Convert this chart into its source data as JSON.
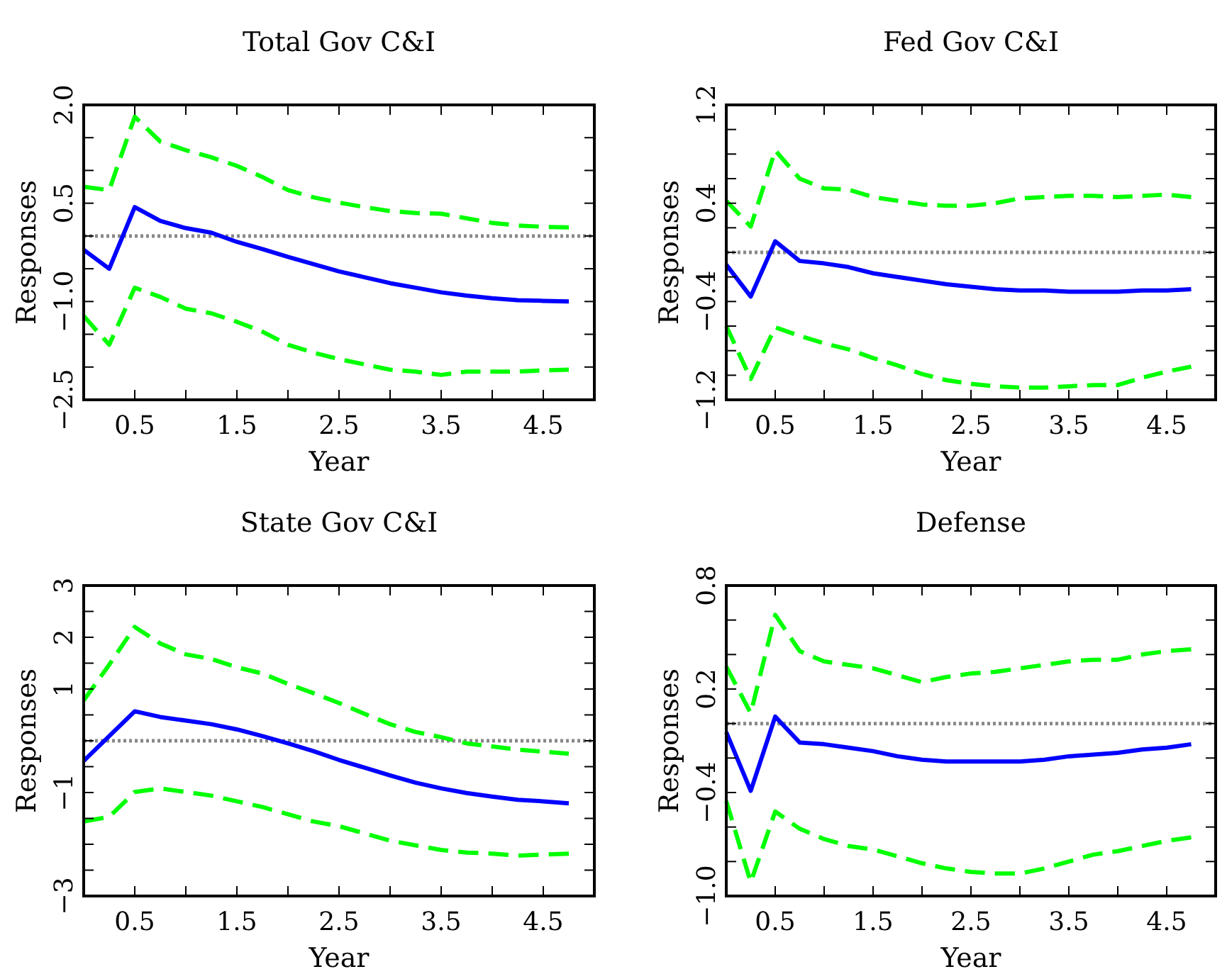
{
  "chart_data": [
    {
      "type": "line",
      "title": "Total Gov C&I",
      "xlabel": "Year",
      "ylabel": "Responses",
      "x": [
        0,
        0.25,
        0.5,
        0.75,
        1,
        1.25,
        1.5,
        1.75,
        2,
        2.25,
        2.5,
        2.75,
        3,
        3.25,
        3.5,
        3.75,
        4,
        4.25,
        4.5,
        4.75
      ],
      "xlim": [
        0,
        5
      ],
      "ylim": [
        -2.5,
        2.0
      ],
      "xticks": [
        {
          "value": 0,
          "label": null
        },
        {
          "value": 0.5,
          "label": "0.5"
        },
        {
          "value": 1,
          "label": null
        },
        {
          "value": 1.5,
          "label": "1.5"
        },
        {
          "value": 2,
          "label": null
        },
        {
          "value": 2.5,
          "label": "2.5"
        },
        {
          "value": 3,
          "label": null
        },
        {
          "value": 3.5,
          "label": "3.5"
        },
        {
          "value": 4,
          "label": null
        },
        {
          "value": 4.5,
          "label": "4.5"
        },
        {
          "value": 5,
          "label": null
        }
      ],
      "yticks": [
        {
          "value": -2.5,
          "label": "−2.5"
        },
        {
          "value": -2,
          "label": null
        },
        {
          "value": -1.5,
          "label": null
        },
        {
          "value": -1,
          "label": "−1.0"
        },
        {
          "value": -0.5,
          "label": null
        },
        {
          "value": 0,
          "label": null
        },
        {
          "value": 0.5,
          "label": "0.5"
        },
        {
          "value": 1,
          "label": null
        },
        {
          "value": 1.5,
          "label": null
        },
        {
          "value": 2,
          "label": "2.0"
        }
      ],
      "ref_lines": [
        {
          "axis": "y",
          "value": 0,
          "color": "#888888",
          "line_style": "dotted"
        }
      ],
      "series": [
        {
          "color": "#00ff00",
          "line_style": "dashed",
          "values": [
            0.75,
            0.7,
            1.82,
            1.44,
            1.31,
            1.2,
            1.07,
            0.9,
            0.7,
            0.59,
            0.51,
            0.44,
            0.38,
            0.35,
            0.34,
            0.27,
            0.2,
            0.16,
            0.14,
            0.13
          ]
        },
        {
          "color": "#0000ff",
          "line_style": "solid",
          "values": [
            -0.21,
            -0.5,
            0.44,
            0.23,
            0.12,
            0.05,
            -0.09,
            -0.2,
            -0.32,
            -0.43,
            -0.54,
            -0.63,
            -0.72,
            -0.79,
            -0.86,
            -0.91,
            -0.95,
            -0.98,
            -0.99,
            -1.0
          ]
        },
        {
          "color": "#00ff00",
          "line_style": "dashed",
          "values": [
            -1.22,
            -1.66,
            -0.79,
            -0.93,
            -1.11,
            -1.18,
            -1.31,
            -1.46,
            -1.66,
            -1.78,
            -1.88,
            -1.96,
            -2.04,
            -2.07,
            -2.12,
            -2.07,
            -2.07,
            -2.07,
            -2.05,
            -2.04
          ]
        }
      ]
    },
    {
      "type": "line",
      "title": "Fed Gov C&I",
      "xlabel": "Year",
      "ylabel": "Responses",
      "x": [
        0,
        0.25,
        0.5,
        0.75,
        1,
        1.25,
        1.5,
        1.75,
        2,
        2.25,
        2.5,
        2.75,
        3,
        3.25,
        3.5,
        3.75,
        4,
        4.25,
        4.5,
        4.75
      ],
      "xlim": [
        0,
        5
      ],
      "ylim": [
        -1.2,
        1.2
      ],
      "xticks": [
        {
          "value": 0,
          "label": null
        },
        {
          "value": 0.5,
          "label": "0.5"
        },
        {
          "value": 1,
          "label": null
        },
        {
          "value": 1.5,
          "label": "1.5"
        },
        {
          "value": 2,
          "label": null
        },
        {
          "value": 2.5,
          "label": "2.5"
        },
        {
          "value": 3,
          "label": null
        },
        {
          "value": 3.5,
          "label": "3.5"
        },
        {
          "value": 4,
          "label": null
        },
        {
          "value": 4.5,
          "label": "4.5"
        },
        {
          "value": 5,
          "label": null
        }
      ],
      "yticks": [
        {
          "value": -1.2,
          "label": "−1.2"
        },
        {
          "value": -1.0,
          "label": null
        },
        {
          "value": -0.8,
          "label": null
        },
        {
          "value": -0.6,
          "label": null
        },
        {
          "value": -0.4,
          "label": "−0.4"
        },
        {
          "value": -0.2,
          "label": null
        },
        {
          "value": 0,
          "label": null
        },
        {
          "value": 0.2,
          "label": null
        },
        {
          "value": 0.4,
          "label": "0.4"
        },
        {
          "value": 0.6,
          "label": null
        },
        {
          "value": 0.8,
          "label": null
        },
        {
          "value": 1.0,
          "label": null
        },
        {
          "value": 1.2,
          "label": "1.2"
        }
      ],
      "ref_lines": [
        {
          "axis": "y",
          "value": 0,
          "color": "#888888",
          "line_style": "dotted"
        }
      ],
      "series": [
        {
          "color": "#00ff00",
          "line_style": "dashed",
          "values": [
            0.42,
            0.21,
            0.83,
            0.6,
            0.52,
            0.51,
            0.45,
            0.42,
            0.39,
            0.38,
            0.38,
            0.4,
            0.44,
            0.45,
            0.46,
            0.46,
            0.45,
            0.46,
            0.47,
            0.45
          ]
        },
        {
          "color": "#0000ff",
          "line_style": "solid",
          "values": [
            -0.1,
            -0.36,
            0.09,
            -0.07,
            -0.09,
            -0.12,
            -0.17,
            -0.2,
            -0.23,
            -0.26,
            -0.28,
            -0.3,
            -0.31,
            -0.31,
            -0.32,
            -0.32,
            -0.32,
            -0.31,
            -0.31,
            -0.3
          ]
        },
        {
          "color": "#00ff00",
          "line_style": "dashed",
          "values": [
            -0.6,
            -1.03,
            -0.61,
            -0.68,
            -0.74,
            -0.79,
            -0.86,
            -0.92,
            -0.99,
            -1.04,
            -1.07,
            -1.09,
            -1.1,
            -1.1,
            -1.09,
            -1.08,
            -1.08,
            -1.02,
            -0.97,
            -0.93
          ]
        }
      ]
    },
    {
      "type": "line",
      "title": "State Gov C&I",
      "xlabel": "Year",
      "ylabel": "Responses",
      "x": [
        0,
        0.25,
        0.5,
        0.75,
        1,
        1.25,
        1.5,
        1.75,
        2,
        2.25,
        2.5,
        2.75,
        3,
        3.25,
        3.5,
        3.75,
        4,
        4.25,
        4.5,
        4.75
      ],
      "xlim": [
        0,
        5
      ],
      "ylim": [
        -3,
        3
      ],
      "xticks": [
        {
          "value": 0,
          "label": null
        },
        {
          "value": 0.5,
          "label": "0.5"
        },
        {
          "value": 1,
          "label": null
        },
        {
          "value": 1.5,
          "label": "1.5"
        },
        {
          "value": 2,
          "label": null
        },
        {
          "value": 2.5,
          "label": "2.5"
        },
        {
          "value": 3,
          "label": null
        },
        {
          "value": 3.5,
          "label": "3.5"
        },
        {
          "value": 4,
          "label": null
        },
        {
          "value": 4.5,
          "label": "4.5"
        },
        {
          "value": 5,
          "label": null
        }
      ],
      "yticks": [
        {
          "value": -3,
          "label": "−3"
        },
        {
          "value": -2.5,
          "label": null
        },
        {
          "value": -2,
          "label": null
        },
        {
          "value": -1.5,
          "label": null
        },
        {
          "value": -1,
          "label": "−1"
        },
        {
          "value": -0.5,
          "label": null
        },
        {
          "value": 0,
          "label": null
        },
        {
          "value": 0.5,
          "label": null
        },
        {
          "value": 1,
          "label": "1"
        },
        {
          "value": 1.5,
          "label": null
        },
        {
          "value": 2,
          "label": "2"
        },
        {
          "value": 2.5,
          "label": null
        },
        {
          "value": 3,
          "label": "3"
        }
      ],
      "ref_lines": [
        {
          "axis": "y",
          "value": 0,
          "color": "#888888",
          "line_style": "dotted"
        }
      ],
      "series": [
        {
          "color": "#00ff00",
          "line_style": "dashed",
          "values": [
            0.78,
            1.47,
            2.2,
            1.88,
            1.67,
            1.58,
            1.42,
            1.3,
            1.1,
            0.92,
            0.73,
            0.52,
            0.32,
            0.17,
            0.07,
            -0.05,
            -0.11,
            -0.17,
            -0.21,
            -0.25
          ]
        },
        {
          "color": "#0000ff",
          "line_style": "solid",
          "values": [
            -0.39,
            0.09,
            0.57,
            0.46,
            0.39,
            0.32,
            0.22,
            0.09,
            -0.05,
            -0.2,
            -0.37,
            -0.52,
            -0.67,
            -0.81,
            -0.92,
            -1.01,
            -1.08,
            -1.14,
            -1.17,
            -1.21
          ]
        },
        {
          "color": "#00ff00",
          "line_style": "dashed",
          "values": [
            -1.56,
            -1.47,
            -0.99,
            -0.92,
            -0.99,
            -1.06,
            -1.17,
            -1.28,
            -1.42,
            -1.56,
            -1.65,
            -1.79,
            -1.93,
            -2.02,
            -2.11,
            -2.16,
            -2.18,
            -2.22,
            -2.2,
            -2.18
          ]
        }
      ]
    },
    {
      "type": "line",
      "title": "Defense",
      "xlabel": "Year",
      "ylabel": "Responses",
      "x": [
        0,
        0.25,
        0.5,
        0.75,
        1,
        1.25,
        1.5,
        1.75,
        2,
        2.25,
        2.5,
        2.75,
        3,
        3.25,
        3.5,
        3.75,
        4,
        4.25,
        4.5,
        4.75
      ],
      "xlim": [
        0,
        5
      ],
      "ylim": [
        -1.0,
        0.8
      ],
      "xticks": [
        {
          "value": 0,
          "label": null
        },
        {
          "value": 0.5,
          "label": "0.5"
        },
        {
          "value": 1,
          "label": null
        },
        {
          "value": 1.5,
          "label": "1.5"
        },
        {
          "value": 2,
          "label": null
        },
        {
          "value": 2.5,
          "label": "2.5"
        },
        {
          "value": 3,
          "label": null
        },
        {
          "value": 3.5,
          "label": "3.5"
        },
        {
          "value": 4,
          "label": null
        },
        {
          "value": 4.5,
          "label": "4.5"
        },
        {
          "value": 5,
          "label": null
        }
      ],
      "yticks": [
        {
          "value": -1.0,
          "label": "−1.0"
        },
        {
          "value": -0.8,
          "label": null
        },
        {
          "value": -0.6,
          "label": null
        },
        {
          "value": -0.4,
          "label": "−0.4"
        },
        {
          "value": -0.2,
          "label": null
        },
        {
          "value": 0,
          "label": null
        },
        {
          "value": 0.2,
          "label": "0.2"
        },
        {
          "value": 0.4,
          "label": null
        },
        {
          "value": 0.6,
          "label": null
        },
        {
          "value": 0.8,
          "label": "0.8"
        }
      ],
      "ref_lines": [
        {
          "axis": "y",
          "value": 0,
          "color": "#888888",
          "line_style": "dotted"
        }
      ],
      "series": [
        {
          "color": "#00ff00",
          "line_style": "dashed",
          "values": [
            0.33,
            0.06,
            0.63,
            0.42,
            0.36,
            0.34,
            0.32,
            0.28,
            0.24,
            0.27,
            0.29,
            0.3,
            0.32,
            0.34,
            0.36,
            0.37,
            0.37,
            0.4,
            0.42,
            0.43
          ]
        },
        {
          "color": "#0000ff",
          "line_style": "solid",
          "values": [
            -0.05,
            -0.39,
            0.04,
            -0.11,
            -0.12,
            -0.14,
            -0.16,
            -0.19,
            -0.21,
            -0.22,
            -0.22,
            -0.22,
            -0.22,
            -0.21,
            -0.19,
            -0.18,
            -0.17,
            -0.15,
            -0.14,
            -0.12
          ]
        },
        {
          "color": "#00ff00",
          "line_style": "dashed",
          "values": [
            -0.45,
            -0.92,
            -0.51,
            -0.61,
            -0.67,
            -0.71,
            -0.73,
            -0.77,
            -0.81,
            -0.84,
            -0.86,
            -0.87,
            -0.87,
            -0.84,
            -0.8,
            -0.76,
            -0.74,
            -0.71,
            -0.68,
            -0.66
          ]
        }
      ]
    }
  ]
}
